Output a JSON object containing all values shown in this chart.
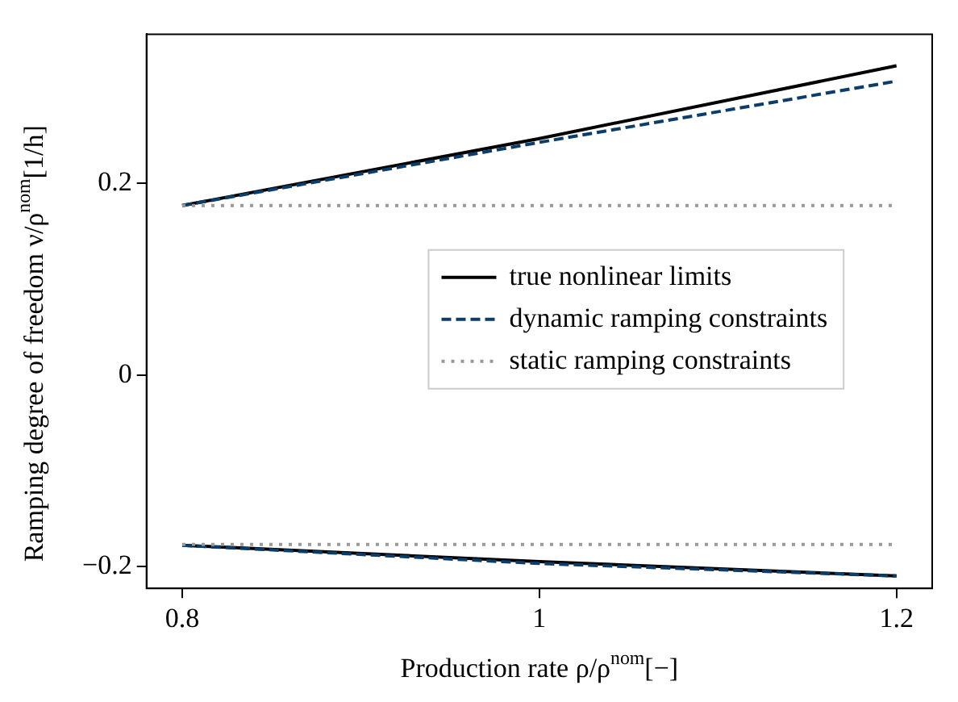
{
  "chart_data": {
    "type": "line",
    "xlabel": "Production rate ρ/ρ$^{nom}$[−]",
    "ylabel": "Ramping degree of freedom ν/ρ$^{nom}$[1/h]",
    "x": [
      0.8,
      1.0,
      1.2
    ],
    "series": [
      {
        "name": "true nonlinear limits",
        "color": "#000000",
        "line_style": "solid",
        "values": [
          0.177,
          0.247,
          0.323
        ]
      },
      {
        "color": "#000000",
        "line_style": "solid",
        "values": [
          -0.178,
          -0.195,
          -0.21
        ]
      },
      {
        "name": "dynamic ramping constraints",
        "color": "#0b3d6b",
        "line_style": "dashed",
        "values": [
          0.177,
          0.243,
          0.307
        ]
      },
      {
        "color": "#0b3d6b",
        "line_style": "dashed",
        "values": [
          -0.178,
          -0.197,
          -0.21
        ]
      },
      {
        "name": "static ramping constraints",
        "color": "#999999",
        "line_style": "dotted",
        "values": [
          0.177,
          0.177,
          0.177
        ]
      },
      {
        "color": "#999999",
        "line_style": "dotted",
        "values": [
          -0.177,
          -0.177,
          -0.177
        ]
      }
    ],
    "xlim": [
      0.78,
      1.22
    ],
    "ylim": [
      -0.223,
      0.356
    ],
    "xticks": [
      0.8,
      1,
      1.2
    ],
    "yticks": [
      {
        "value": -0.2,
        "label": "−0.2"
      },
      0,
      0.2
    ],
    "grid": false,
    "legend": "center",
    "marker": "none"
  }
}
